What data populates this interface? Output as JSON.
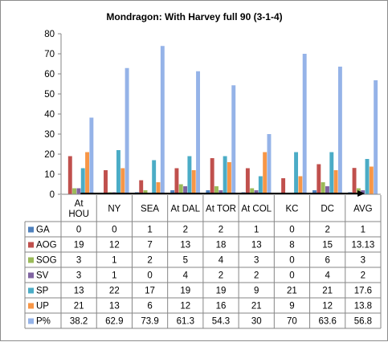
{
  "chart_data": {
    "type": "bar",
    "title": "Mondragon: With Harvey full 90 (3-1-4)",
    "categories": [
      [
        "At",
        "HOU"
      ],
      [
        "NY"
      ],
      [
        "SEA"
      ],
      [
        "At DAL"
      ],
      [
        "At TOR"
      ],
      [
        "At COL"
      ],
      [
        "KC"
      ],
      [
        "DC"
      ],
      [
        "AVG"
      ]
    ],
    "ylim": [
      0,
      80
    ],
    "yticks": [
      0,
      10,
      20,
      30,
      40,
      50,
      60,
      70,
      80
    ],
    "grid": false,
    "legend": "table",
    "series": [
      {
        "name": "GA",
        "color": "#4f81bd",
        "values": [
          0,
          0,
          1,
          2,
          2,
          1,
          0,
          2,
          1
        ],
        "labels": [
          "0",
          "0",
          "1",
          "2",
          "2",
          "1",
          "0",
          "2",
          "1"
        ]
      },
      {
        "name": "AOG",
        "color": "#c0504d",
        "values": [
          19,
          12,
          7,
          13,
          18,
          13,
          8,
          15,
          13.13
        ],
        "labels": [
          "19",
          "12",
          "7",
          "13",
          "18",
          "13",
          "8",
          "15",
          "13.13"
        ]
      },
      {
        "name": "SOG",
        "color": "#9bbb59",
        "values": [
          3,
          1,
          2,
          5,
          4,
          3,
          0,
          6,
          3
        ],
        "labels": [
          "3",
          "1",
          "2",
          "5",
          "4",
          "3",
          "0",
          "6",
          "3"
        ]
      },
      {
        "name": "SV",
        "color": "#8064a2",
        "values": [
          3,
          1,
          0,
          4,
          2,
          2,
          0,
          4,
          2
        ],
        "labels": [
          "3",
          "1",
          "0",
          "4",
          "2",
          "2",
          "0",
          "4",
          "2"
        ]
      },
      {
        "name": "SP",
        "color": "#4bacc6",
        "values": [
          13,
          22,
          17,
          19,
          19,
          9,
          21,
          21,
          17.6
        ],
        "labels": [
          "13",
          "22",
          "17",
          "19",
          "19",
          "9",
          "21",
          "21",
          "17.6"
        ]
      },
      {
        "name": "UP",
        "color": "#f79646",
        "values": [
          21,
          13,
          6,
          12,
          16,
          21,
          9,
          12,
          13.8
        ],
        "labels": [
          "21",
          "13",
          "6",
          "12",
          "16",
          "21",
          "9",
          "12",
          "13.8"
        ]
      },
      {
        "name": "P%",
        "color": "#95b3e8",
        "values": [
          38.2,
          62.9,
          73.9,
          61.3,
          54.3,
          30,
          70,
          63.6,
          56.8
        ],
        "labels": [
          "38.2",
          "62.9",
          "73.9",
          "61.3",
          "54.3",
          "30",
          "70",
          "63.6",
          "56.8"
        ]
      }
    ],
    "annotations": [
      {
        "type": "arrow",
        "direction": "right",
        "from_category": "At HOU",
        "to_category": "AVG",
        "color": "#000000"
      }
    ]
  }
}
